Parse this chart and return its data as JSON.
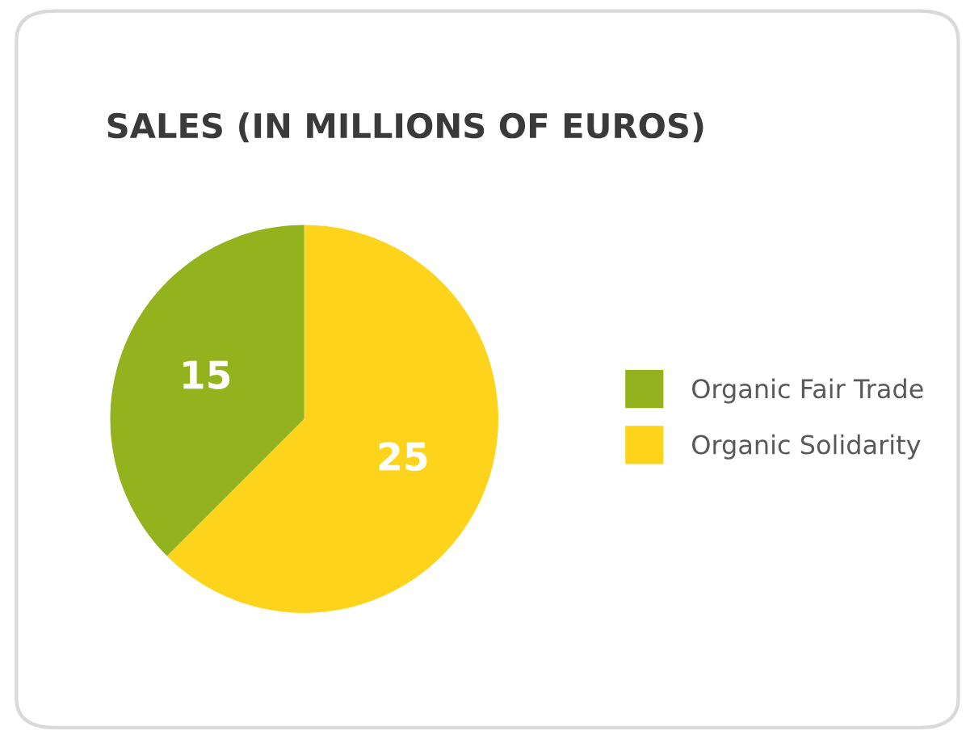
{
  "chart_data": {
    "type": "pie",
    "title": "SALES (IN MILLIONS OF EUROS)",
    "categories": [
      "Organic Fair Trade",
      "Organic Solidarity"
    ],
    "values": [
      15,
      25
    ],
    "colors": [
      "#94b21e",
      "#fdd31b"
    ],
    "data_labels": true,
    "legend": "right"
  }
}
